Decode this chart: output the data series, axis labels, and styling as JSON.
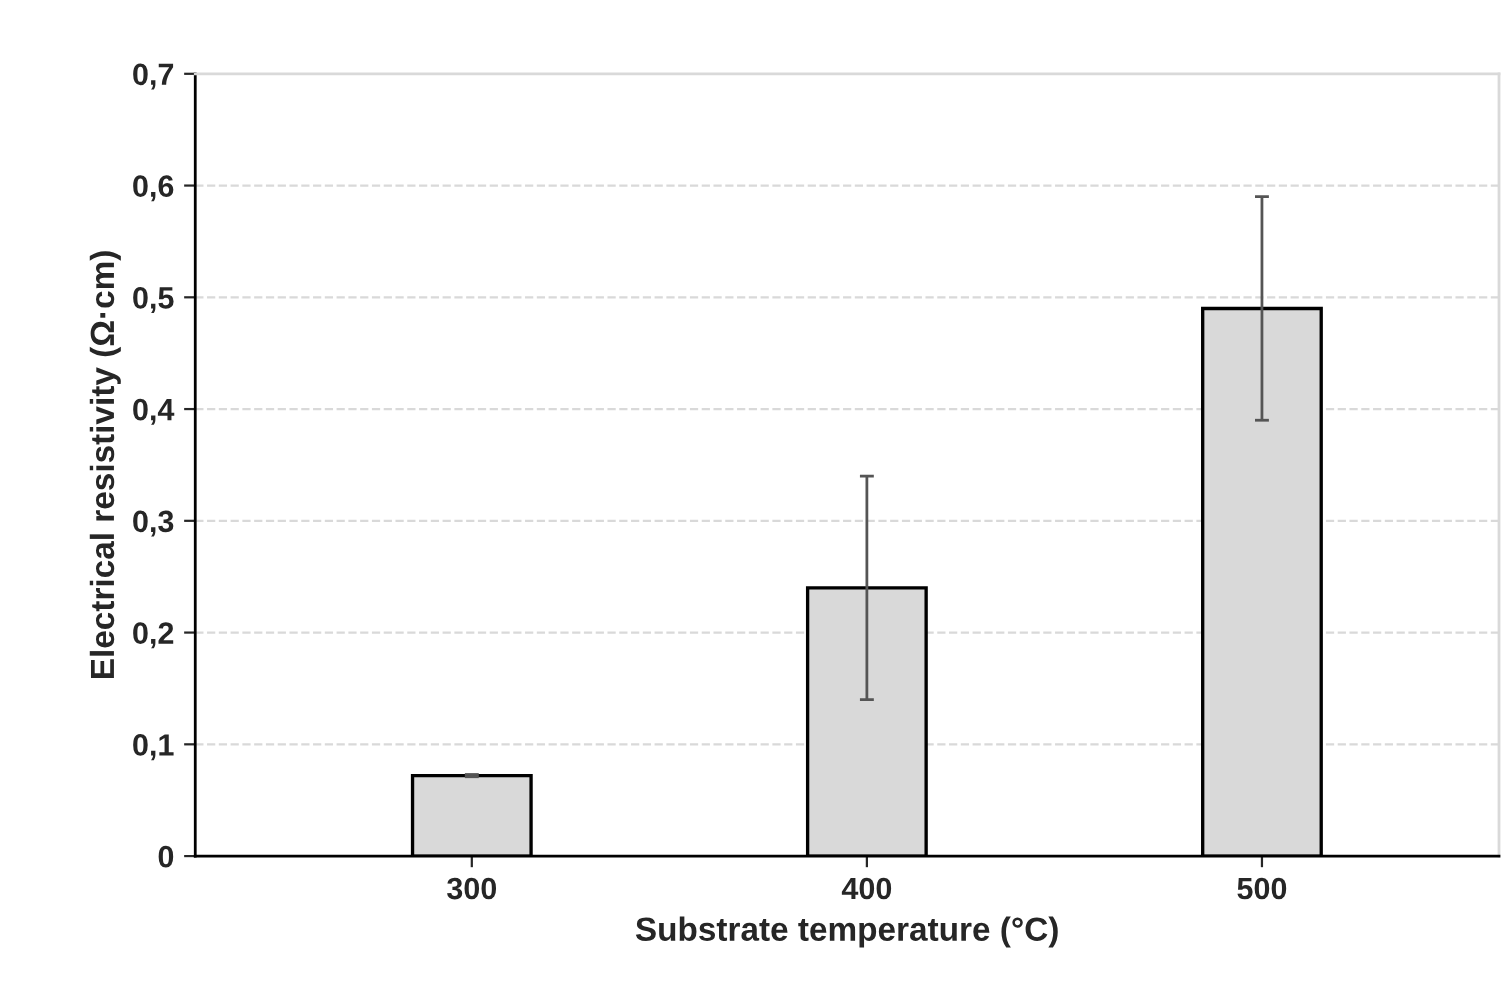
{
  "chart_data": {
    "type": "bar",
    "categories": [
      "300",
      "400",
      "500"
    ],
    "values": [
      0.072,
      0.24,
      0.49
    ],
    "errors": [
      0.001,
      0.1,
      0.1
    ],
    "color": "#d9d9d9",
    "xlabel": "Substrate temperature (°C)",
    "ylabel": "Electrical resistivity (Ω·cm)",
    "ylim": [
      0,
      0.7
    ],
    "yticks": [
      {
        "value": 0,
        "label": "0"
      },
      {
        "value": 0.1,
        "label": "0,1"
      },
      {
        "value": 0.2,
        "label": "0,2"
      },
      {
        "value": 0.3,
        "label": "0,3"
      },
      {
        "value": 0.4,
        "label": "0,4"
      },
      {
        "value": 0.5,
        "label": "0,5"
      },
      {
        "value": 0.6,
        "label": "0,6"
      },
      {
        "value": 0.7,
        "label": "0,7"
      }
    ],
    "grid": "y"
  }
}
